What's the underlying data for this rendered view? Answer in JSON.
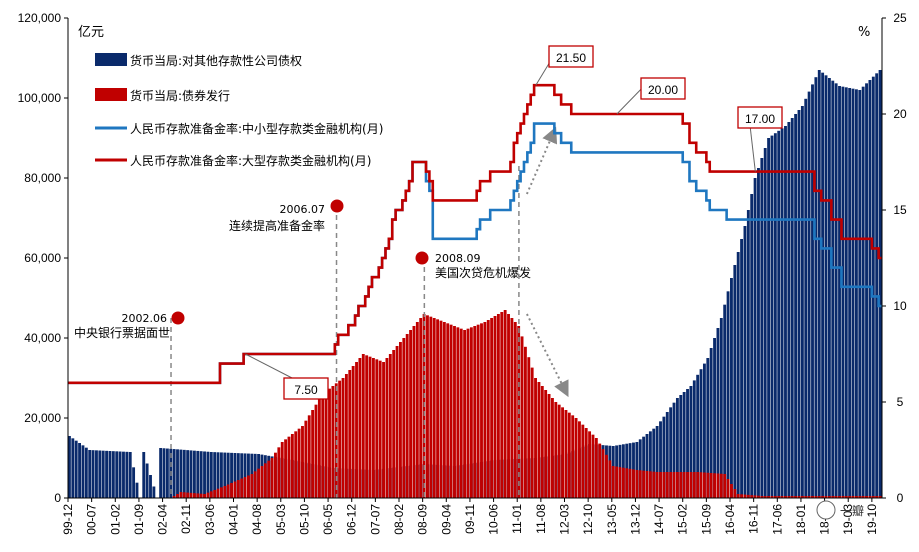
{
  "chart_data": {
    "type": "bar+line",
    "left_axis": {
      "unit": "亿元",
      "ylim": [
        0,
        120000
      ],
      "ticks": [
        "0",
        "20,000",
        "40,000",
        "60,000",
        "80,000",
        "100,000",
        "120,000"
      ],
      "tick_values": [
        0,
        20000,
        40000,
        60000,
        80000,
        100000,
        120000
      ]
    },
    "right_axis": {
      "unit": "%",
      "ylim": [
        0,
        25
      ],
      "ticks": [
        "0",
        "5",
        "10",
        "15",
        "20",
        "25"
      ],
      "tick_values": [
        0,
        5,
        10,
        15,
        20,
        25
      ]
    },
    "x_axis": {
      "start": "1999-12",
      "end": "2019-12",
      "ticks": [
        "99-12",
        "00-07",
        "01-02",
        "01-09",
        "02-04",
        "02-11",
        "03-06",
        "04-01",
        "04-08",
        "05-03",
        "05-10",
        "06-05",
        "06-12",
        "07-07",
        "08-02",
        "08-09",
        "09-04",
        "09-11",
        "10-06",
        "11-01",
        "11-08",
        "12-03",
        "12-10",
        "13-05",
        "13-12",
        "14-07",
        "15-02",
        "15-09",
        "16-04",
        "16-11",
        "17-06",
        "18-01",
        "18-08",
        "19-03",
        "19-10"
      ]
    },
    "legend": [
      {
        "name": "货币当局:对其他存款性公司债权",
        "color": "#0a2a6b",
        "kind": "bar"
      },
      {
        "name": "货币当局:债券发行",
        "color": "#c00000",
        "kind": "bar"
      },
      {
        "name": "人民币存款准备金率:中小型存款类金融机构(月)",
        "color": "#1f77c0",
        "kind": "line"
      },
      {
        "name": "人民币存款准备金率:大型存款类金融机构(月)",
        "color": "#c00000",
        "kind": "line"
      }
    ],
    "claims_series": {
      "name": "货币当局:对其他存款性公司债权",
      "points": [
        [
          "1999-12",
          15500
        ],
        [
          "2000-06",
          12000
        ],
        [
          "2001-06",
          11500
        ],
        [
          "2001-09",
          0
        ],
        [
          "2001-10",
          11500
        ],
        [
          "2002-02",
          0
        ],
        [
          "2002-03",
          12500
        ],
        [
          "2003-06",
          11500
        ],
        [
          "2004-08",
          11000
        ],
        [
          "2005-06",
          9500
        ],
        [
          "2006-06",
          7500
        ],
        [
          "2007-06",
          7000
        ],
        [
          "2008-09",
          8500
        ],
        [
          "2009-06",
          8000
        ],
        [
          "2010-06",
          9500
        ],
        [
          "2011-06",
          10000
        ],
        [
          "2012-03",
          11000
        ],
        [
          "2012-10",
          13500
        ],
        [
          "2013-05",
          13000
        ],
        [
          "2013-12",
          14000
        ],
        [
          "2014-06",
          18000
        ],
        [
          "2014-12",
          25000
        ],
        [
          "2015-04",
          28000
        ],
        [
          "2015-09",
          35000
        ],
        [
          "2016-01",
          45000
        ],
        [
          "2016-04",
          55000
        ],
        [
          "2016-08",
          68000
        ],
        [
          "2016-11",
          80000
        ],
        [
          "2017-03",
          90000
        ],
        [
          "2017-08",
          93000
        ],
        [
          "2018-01",
          98000
        ],
        [
          "2018-06",
          107000
        ],
        [
          "2018-12",
          103000
        ],
        [
          "2019-06",
          102000
        ],
        [
          "2019-12",
          107000
        ]
      ]
    },
    "bonds_series": {
      "name": "货币当局:债券发行",
      "points": [
        [
          "1999-12",
          0
        ],
        [
          "2002-06",
          0
        ],
        [
          "2002-09",
          1500
        ],
        [
          "2003-04",
          1000
        ],
        [
          "2003-10",
          3000
        ],
        [
          "2004-06",
          6000
        ],
        [
          "2004-12",
          10000
        ],
        [
          "2005-03",
          14000
        ],
        [
          "2005-09",
          18000
        ],
        [
          "2006-03",
          26000
        ],
        [
          "2006-09",
          30000
        ],
        [
          "2007-03",
          36000
        ],
        [
          "2007-09",
          34000
        ],
        [
          "2008-03",
          40000
        ],
        [
          "2008-09",
          46000
        ],
        [
          "2009-03",
          44000
        ],
        [
          "2009-09",
          42000
        ],
        [
          "2010-03",
          44000
        ],
        [
          "2010-09",
          47000
        ],
        [
          "2011-01",
          43000
        ],
        [
          "2011-06",
          30000
        ],
        [
          "2011-12",
          24000
        ],
        [
          "2012-06",
          20000
        ],
        [
          "2012-12",
          15000
        ],
        [
          "2013-05",
          8000
        ],
        [
          "2013-12",
          7000
        ],
        [
          "2014-06",
          6500
        ],
        [
          "2015-06",
          6500
        ],
        [
          "2016-02",
          6000
        ],
        [
          "2016-06",
          1000
        ],
        [
          "2017-01",
          500
        ],
        [
          "2019-12",
          500
        ]
      ]
    },
    "rrr_small_series": {
      "name": "人民币存款准备金率:中小型存款类金融机构(月)",
      "points": [
        [
          "1999-12",
          6
        ],
        [
          "2003-08",
          6
        ],
        [
          "2003-09",
          7
        ],
        [
          "2004-03",
          7
        ],
        [
          "2004-04",
          7.5
        ],
        [
          "2006-06",
          7.5
        ],
        [
          "2006-07",
          8
        ],
        [
          "2006-08",
          8.5
        ],
        [
          "2006-11",
          9
        ],
        [
          "2007-01",
          9.5
        ],
        [
          "2007-02",
          10
        ],
        [
          "2007-04",
          10.5
        ],
        [
          "2007-05",
          11
        ],
        [
          "2007-06",
          11.5
        ],
        [
          "2007-08",
          12
        ],
        [
          "2007-09",
          12.5
        ],
        [
          "2007-10",
          13
        ],
        [
          "2007-11",
          13.5
        ],
        [
          "2007-12",
          14.5
        ],
        [
          "2008-01",
          15
        ],
        [
          "2008-03",
          15.5
        ],
        [
          "2008-04",
          16
        ],
        [
          "2008-05",
          16.5
        ],
        [
          "2008-06",
          17.5
        ],
        [
          "2008-09",
          17.5
        ],
        [
          "2008-10",
          16.5
        ],
        [
          "2008-11",
          16
        ],
        [
          "2008-12",
          13.5
        ],
        [
          "2009-12",
          13.5
        ],
        [
          "2010-01",
          14
        ],
        [
          "2010-02",
          14.5
        ],
        [
          "2010-05",
          15
        ],
        [
          "2010-11",
          15.5
        ],
        [
          "2010-12",
          16
        ],
        [
          "2011-01",
          16.5
        ],
        [
          "2011-02",
          17
        ],
        [
          "2011-03",
          17.5
        ],
        [
          "2011-04",
          18
        ],
        [
          "2011-05",
          18.5
        ],
        [
          "2011-06",
          19.5
        ],
        [
          "2011-11",
          19.5
        ],
        [
          "2011-12",
          19
        ],
        [
          "2012-02",
          18.5
        ],
        [
          "2012-05",
          18
        ],
        [
          "2015-01",
          18
        ],
        [
          "2015-02",
          17.5
        ],
        [
          "2015-04",
          16.5
        ],
        [
          "2015-06",
          16
        ],
        [
          "2015-09",
          15.5
        ],
        [
          "2015-10",
          15
        ],
        [
          "2016-02",
          15
        ],
        [
          "2016-03",
          14.5
        ],
        [
          "2018-04",
          14.5
        ],
        [
          "2018-05",
          13.5
        ],
        [
          "2018-07",
          13
        ],
        [
          "2018-10",
          12
        ],
        [
          "2019-01",
          11
        ],
        [
          "2019-09",
          11
        ],
        [
          "2019-10",
          10.5
        ],
        [
          "2019-12",
          10
        ]
      ]
    },
    "rrr_large_series": {
      "name": "人民币存款准备金率:大型存款类金融机构(月)",
      "points": [
        [
          "1999-12",
          6
        ],
        [
          "2003-08",
          6
        ],
        [
          "2003-09",
          7
        ],
        [
          "2004-03",
          7
        ],
        [
          "2004-04",
          7.5
        ],
        [
          "2006-06",
          7.5
        ],
        [
          "2006-07",
          8
        ],
        [
          "2006-08",
          8.5
        ],
        [
          "2006-11",
          9
        ],
        [
          "2007-01",
          9.5
        ],
        [
          "2007-02",
          10
        ],
        [
          "2007-04",
          10.5
        ],
        [
          "2007-05",
          11
        ],
        [
          "2007-06",
          11.5
        ],
        [
          "2007-08",
          12
        ],
        [
          "2007-09",
          12.5
        ],
        [
          "2007-10",
          13
        ],
        [
          "2007-11",
          13.5
        ],
        [
          "2007-12",
          14.5
        ],
        [
          "2008-01",
          15
        ],
        [
          "2008-03",
          15.5
        ],
        [
          "2008-04",
          16
        ],
        [
          "2008-05",
          16.5
        ],
        [
          "2008-06",
          17.5
        ],
        [
          "2008-09",
          17.5
        ],
        [
          "2008-10",
          17
        ],
        [
          "2008-11",
          16.5
        ],
        [
          "2008-12",
          15.5
        ],
        [
          "2009-12",
          15.5
        ],
        [
          "2010-01",
          16
        ],
        [
          "2010-02",
          16.5
        ],
        [
          "2010-05",
          17
        ],
        [
          "2010-11",
          17.5
        ],
        [
          "2010-12",
          18.5
        ],
        [
          "2011-01",
          19
        ],
        [
          "2011-02",
          19.5
        ],
        [
          "2011-03",
          20
        ],
        [
          "2011-04",
          20.5
        ],
        [
          "2011-05",
          21
        ],
        [
          "2011-06",
          21.5
        ],
        [
          "2011-11",
          21.5
        ],
        [
          "2011-12",
          21
        ],
        [
          "2012-02",
          20.5
        ],
        [
          "2012-05",
          20
        ],
        [
          "2015-01",
          20
        ],
        [
          "2015-02",
          19.5
        ],
        [
          "2015-04",
          18.5
        ],
        [
          "2015-06",
          18
        ],
        [
          "2015-09",
          17.5
        ],
        [
          "2015-10",
          17
        ],
        [
          "2018-04",
          17
        ],
        [
          "2018-05",
          16
        ],
        [
          "2018-07",
          15.5
        ],
        [
          "2018-10",
          14.5
        ],
        [
          "2019-01",
          13.5
        ],
        [
          "2019-09",
          13.5
        ],
        [
          "2019-10",
          13
        ],
        [
          "2019-12",
          12.5
        ]
      ]
    },
    "callouts": [
      {
        "label": "7.50",
        "date": "2004-04",
        "value": 7.5
      },
      {
        "label": "21.50",
        "date": "2011-06",
        "value": 21.5
      },
      {
        "label": "20.00",
        "date": "2013-06",
        "value": 20
      },
      {
        "label": "17.00",
        "date": "2016-11",
        "value": 17
      }
    ],
    "events": [
      {
        "date_label": "2002.06",
        "text": "中央银行票据面世",
        "date": "2002-06"
      },
      {
        "date_label": "2006.07",
        "text": "连续提高准备金率",
        "date": "2006-07"
      },
      {
        "date_label": "2008.09",
        "text": "美国次贷危机爆发",
        "date": "2008-09"
      },
      {
        "date_label": "",
        "text": "",
        "date": "2011-01"
      }
    ],
    "watermark": "一瓣"
  }
}
